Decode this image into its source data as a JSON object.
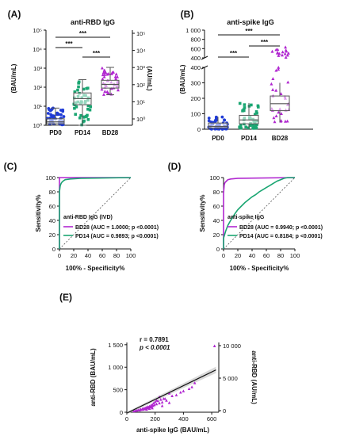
{
  "colors": {
    "PD0": "#1f3bd6",
    "PD14": "#1aa672",
    "BD28": "#b026d0",
    "grid": "#777777"
  },
  "chart_data": [
    {
      "panel": "(A)",
      "type": "scatter",
      "title": "anti-RBD IgG",
      "ylabel": "(BAU/mL)",
      "y2label": "(AU/mL)",
      "yscale": "log",
      "ylim": [
        1,
        100000
      ],
      "yticks": [
        "10⁰",
        "10¹",
        "10²",
        "10³",
        "10⁴",
        "10⁵"
      ],
      "y2ticks": [
        "10⁰",
        "10¹",
        "10²",
        "10³",
        "10⁴",
        "10⁵"
      ],
      "categories": [
        "PD0",
        "PD14",
        "BD28"
      ],
      "series": [
        {
          "name": "PD0",
          "median": 1.5,
          "q1": 1.2,
          "q3": 2.2,
          "min": 1,
          "max": 8
        },
        {
          "name": "PD14",
          "median": 25,
          "q1": 12,
          "q3": 50,
          "min": 1,
          "max": 250
        },
        {
          "name": "BD28",
          "median": 140,
          "q1": 90,
          "q3": 230,
          "min": 40,
          "max": 1100
        }
      ],
      "significance": [
        "***",
        "***",
        "***"
      ]
    },
    {
      "panel": "(B)",
      "type": "scatter",
      "title": "anti-spike IgG",
      "ylabel": "(BAU/mL)",
      "yscale": "broken",
      "ylim": [
        0,
        1000
      ],
      "yticks_lower": [
        "0",
        "100",
        "200",
        "300",
        "400"
      ],
      "yticks_upper": [
        "400",
        "600",
        "800",
        "1 000"
      ],
      "categories": [
        "PD0",
        "PD14",
        "BD28"
      ],
      "series": [
        {
          "name": "PD0",
          "median": 18,
          "q1": 8,
          "q3": 40,
          "min": 0,
          "max": 80
        },
        {
          "name": "PD14",
          "median": 60,
          "q1": 35,
          "q3": 90,
          "min": 5,
          "max": 170
        },
        {
          "name": "BD28",
          "median": 165,
          "q1": 120,
          "q3": 215,
          "min": 45,
          "max": 630
        }
      ],
      "significance": [
        "***",
        "***",
        "***"
      ]
    },
    {
      "panel": "(C)",
      "type": "line",
      "xlabel": "100% - Specificity%",
      "ylabel": "Sensitivity%",
      "xlim": [
        0,
        100
      ],
      "ylim": [
        0,
        100
      ],
      "ticks": [
        "0",
        "20",
        "40",
        "60",
        "80",
        "100"
      ],
      "legend_title": "anti-RBD IgG (IVD)",
      "series": [
        {
          "name": "BD28 (AUC = 1.0000; p <0.0001)",
          "x": [
            0,
            0,
            100
          ],
          "y": [
            0,
            100,
            100
          ]
        },
        {
          "name": "PD14 (AUC = 0.9893; p <0.0001)",
          "x": [
            0,
            0,
            1,
            2,
            3,
            5,
            8,
            15,
            30,
            100
          ],
          "y": [
            0,
            80,
            88,
            91,
            93,
            95,
            97,
            98,
            99,
            100
          ]
        }
      ]
    },
    {
      "panel": "(D)",
      "type": "line",
      "xlabel": "100% - Specificity%",
      "ylabel": "Sensitivity%",
      "xlim": [
        0,
        100
      ],
      "ylim": [
        0,
        100
      ],
      "ticks": [
        "0",
        "20",
        "40",
        "60",
        "80",
        "100"
      ],
      "legend_title": "anti-spike IgG",
      "series": [
        {
          "name": "BD28 (AUC = 0.9940; p <0.0001)",
          "x": [
            0,
            0,
            1,
            2,
            4,
            6,
            10,
            20,
            100
          ],
          "y": [
            0,
            78,
            90,
            93,
            95,
            97,
            98,
            99,
            100
          ]
        },
        {
          "name": "PD14 (AUC = 0.8184; p <0.0001)",
          "x": [
            0,
            0,
            3,
            6,
            10,
            15,
            20,
            25,
            30,
            35,
            40,
            45,
            50,
            55,
            60,
            65,
            70,
            75,
            80,
            85,
            90,
            100
          ],
          "y": [
            0,
            15,
            25,
            33,
            40,
            48,
            55,
            60,
            65,
            69,
            73,
            76,
            80,
            83,
            86,
            89,
            92,
            95,
            97,
            99,
            100,
            100
          ]
        }
      ]
    },
    {
      "panel": "(E)",
      "type": "scatter",
      "xlabel": "anti-spike IgG (BAU/mL)",
      "ylabel": "anti-RBD (BAU/mL)",
      "y2label": "anti-RBD (AU/mL)",
      "xlim": [
        0,
        650
      ],
      "ylim": [
        0,
        1550
      ],
      "xticks": [
        0,
        200,
        400,
        600
      ],
      "yticks": [
        "0",
        "500",
        "1 000",
        "1 500"
      ],
      "y2ticks": [
        "0",
        "5 000",
        "10 000"
      ],
      "annotation_r": "r = 0.7891",
      "annotation_p": "p < 0.0001",
      "fit": {
        "x0": 0,
        "y0": -20,
        "x1": 630,
        "y1": 940
      },
      "points": [
        [
          620,
          1470
        ],
        [
          480,
          650
        ],
        [
          460,
          560
        ],
        [
          440,
          520
        ],
        [
          400,
          470
        ],
        [
          380,
          440
        ],
        [
          350,
          380
        ],
        [
          320,
          360
        ],
        [
          300,
          420
        ],
        [
          280,
          260
        ],
        [
          260,
          300
        ],
        [
          250,
          220
        ],
        [
          240,
          280
        ],
        [
          230,
          200
        ],
        [
          220,
          250
        ],
        [
          210,
          180
        ],
        [
          200,
          230
        ],
        [
          195,
          160
        ],
        [
          190,
          200
        ],
        [
          185,
          140
        ],
        [
          180,
          170
        ],
        [
          175,
          120
        ],
        [
          170,
          150
        ],
        [
          165,
          110
        ],
        [
          160,
          130
        ],
        [
          155,
          100
        ],
        [
          150,
          120
        ],
        [
          145,
          90
        ],
        [
          140,
          110
        ],
        [
          135,
          80
        ],
        [
          130,
          95
        ],
        [
          125,
          70
        ],
        [
          120,
          85
        ],
        [
          115,
          60
        ],
        [
          110,
          75
        ],
        [
          100,
          55
        ],
        [
          95,
          65
        ],
        [
          90,
          45
        ],
        [
          80,
          50
        ],
        [
          70,
          40
        ],
        [
          60,
          30
        ],
        [
          50,
          25
        ],
        [
          230,
          340
        ],
        [
          270,
          300
        ],
        [
          300,
          210
        ],
        [
          210,
          260
        ],
        [
          180,
          90
        ],
        [
          160,
          80
        ],
        [
          140,
          60
        ],
        [
          250,
          140
        ]
      ]
    }
  ]
}
